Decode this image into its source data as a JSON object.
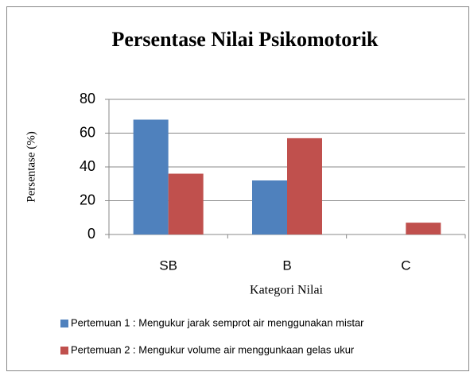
{
  "chart_data": {
    "type": "bar",
    "title": "Persentase Nilai Psikomotorik",
    "x_label": "Kategori Nilai",
    "y_label": "Persentase (%)",
    "categories": [
      "SB",
      "B",
      "C"
    ],
    "series": [
      {
        "name": "Pertemuan 1 : Mengukur jarak semprot air menggunakan mistar",
        "color": "#4f81bd",
        "values": [
          68,
          32,
          0
        ]
      },
      {
        "name": "Pertemuan 2 : Mengukur volume air menggunkaan gelas ukur",
        "color": "#c0504d",
        "values": [
          36,
          57,
          7
        ]
      }
    ],
    "ylim": [
      0,
      80
    ],
    "yticks": [
      0,
      20,
      40,
      60,
      80
    ],
    "grid": true,
    "legend": "bottom"
  }
}
